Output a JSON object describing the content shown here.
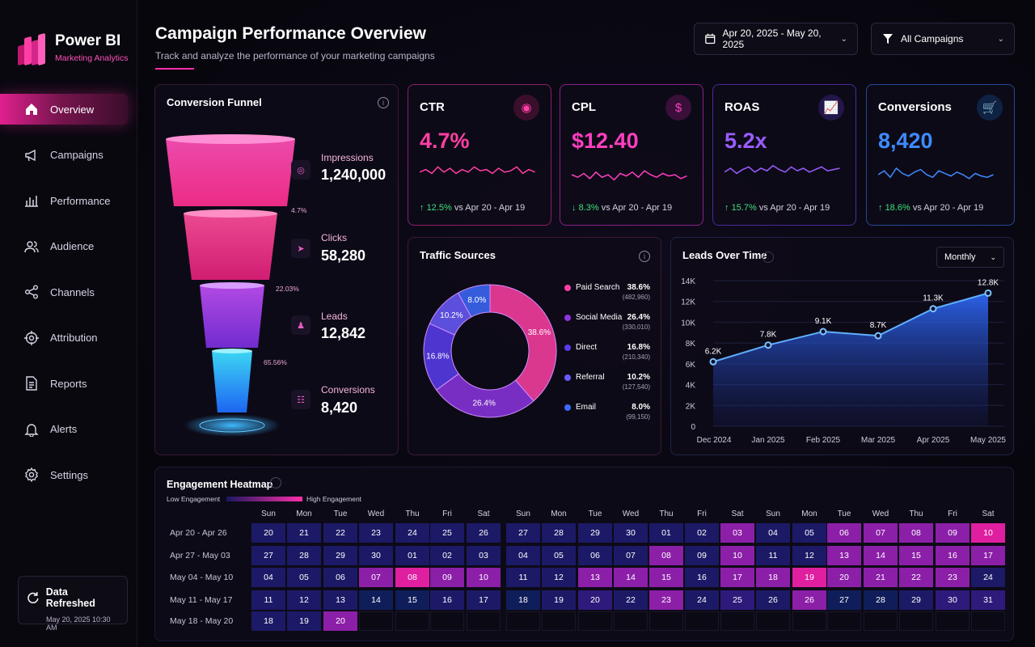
{
  "brand": {
    "title": "Power BI",
    "subtitle": "Marketing Analytics"
  },
  "nav": [
    {
      "label": "Overview",
      "icon": "home-icon",
      "active": true
    },
    {
      "label": "Campaigns",
      "icon": "megaphone-icon"
    },
    {
      "label": "Performance",
      "icon": "bar-chart-icon"
    },
    {
      "label": "Audience",
      "icon": "users-icon"
    },
    {
      "label": "Channels",
      "icon": "share-icon"
    },
    {
      "label": "Attribution",
      "icon": "target-icon"
    },
    {
      "label": "Reports",
      "icon": "document-icon"
    },
    {
      "label": "Alerts",
      "icon": "bell-icon"
    },
    {
      "label": "Settings",
      "icon": "gear-icon"
    }
  ],
  "refresh": {
    "title": "Data Refreshed",
    "time": "May 20, 2025 10:30 AM"
  },
  "header": {
    "title": "Campaign Performance Overview",
    "subtitle": "Track and analyze the performance of your marketing campaigns",
    "date_range": "Apr 20, 2025 - May 20, 2025",
    "campaign_filter": "All Campaigns"
  },
  "funnel": {
    "title": "Conversion Funnel",
    "stages": [
      {
        "label": "Impressions",
        "value": "1,240,000"
      },
      {
        "label": "Clicks",
        "value": "58,280"
      },
      {
        "label": "Leads",
        "value": "12,842"
      },
      {
        "label": "Conversions",
        "value": "8,420"
      }
    ],
    "rates": [
      "4.7%",
      "22.03%",
      "65.56%"
    ]
  },
  "kpis": [
    {
      "label": "CTR",
      "value": "4.7%",
      "change": "12.5%",
      "period": "vs Apr 20 - Apr 19",
      "direction": "up",
      "color": "#ff3fa4",
      "icon": "cursor-click-icon"
    },
    {
      "label": "CPL",
      "value": "$12.40",
      "change": "8.3%",
      "period": "vs Apr 20 - Apr 19",
      "direction": "down",
      "color": "#ff3fc0",
      "icon": "dollar-icon"
    },
    {
      "label": "ROAS",
      "value": "5.2x",
      "change": "15.7%",
      "period": "vs Apr 20 - Apr 19",
      "direction": "up",
      "color": "#9a5cff",
      "icon": "chart-up-icon"
    },
    {
      "label": "Conversions",
      "value": "8,420",
      "change": "18.6%",
      "period": "vs Apr 20 - Apr 19",
      "direction": "up",
      "color": "#3d8bff",
      "icon": "cart-icon"
    }
  ],
  "traffic": {
    "title": "Traffic Sources"
  },
  "leads": {
    "title": "Leads Over Time",
    "granularity": "Monthly"
  },
  "heatmap": {
    "title": "Engagement Heatmap",
    "low_label": "Low Engagement",
    "high_label": "High Engagement",
    "days": [
      "Sun",
      "Mon",
      "Tue",
      "Wed",
      "Thu",
      "Fri",
      "Sat",
      "Sun",
      "Mon",
      "Tue",
      "Wed",
      "Thu",
      "Fri",
      "Sat",
      "Sun",
      "Mon",
      "Tue",
      "Wed",
      "Thu",
      "Fri",
      "Sat"
    ],
    "weeks": [
      "Apr 20 - Apr 26",
      "Apr 27 - May 03",
      "May 04 - May 10",
      "May 11 - May 17",
      "May 18 - May 20"
    ],
    "rows": [
      [
        [
          "20",
          1
        ],
        [
          "21",
          1
        ],
        [
          "22",
          1
        ],
        [
          "23",
          1
        ],
        [
          "24",
          1
        ],
        [
          "25",
          1
        ],
        [
          "26",
          1
        ],
        [
          "27",
          1
        ],
        [
          "28",
          1
        ],
        [
          "29",
          1
        ],
        [
          "30",
          1
        ],
        [
          "01",
          1
        ],
        [
          "02",
          1
        ],
        [
          "03",
          3
        ],
        [
          "04",
          1
        ],
        [
          "05",
          1
        ],
        [
          "06",
          3
        ],
        [
          "07",
          3
        ],
        [
          "08",
          3
        ],
        [
          "09",
          3
        ],
        [
          "10",
          4
        ]
      ],
      [
        [
          "27",
          1
        ],
        [
          "28",
          1
        ],
        [
          "29",
          1
        ],
        [
          "30",
          1
        ],
        [
          "01",
          1
        ],
        [
          "02",
          1
        ],
        [
          "03",
          1
        ],
        [
          "04",
          1
        ],
        [
          "05",
          1
        ],
        [
          "06",
          1
        ],
        [
          "07",
          1
        ],
        [
          "08",
          3
        ],
        [
          "09",
          1
        ],
        [
          "10",
          3
        ],
        [
          "11",
          1
        ],
        [
          "12",
          1
        ],
        [
          "13",
          3
        ],
        [
          "14",
          3
        ],
        [
          "15",
          3
        ],
        [
          "16",
          3
        ],
        [
          "17",
          3
        ]
      ],
      [
        [
          "04",
          1
        ],
        [
          "05",
          1
        ],
        [
          "06",
          1
        ],
        [
          "07",
          3
        ],
        [
          "08",
          4
        ],
        [
          "09",
          3
        ],
        [
          "10",
          3
        ],
        [
          "11",
          1
        ],
        [
          "12",
          1
        ],
        [
          "13",
          3
        ],
        [
          "14",
          3
        ],
        [
          "15",
          3
        ],
        [
          "16",
          1
        ],
        [
          "17",
          3
        ],
        [
          "18",
          3
        ],
        [
          "19",
          4
        ],
        [
          "20",
          3
        ],
        [
          "21",
          3
        ],
        [
          "22",
          3
        ],
        [
          "23",
          3
        ],
        [
          "24",
          1
        ]
      ],
      [
        [
          "11",
          1
        ],
        [
          "12",
          1
        ],
        [
          "13",
          1
        ],
        [
          "14",
          0
        ],
        [
          "15",
          0
        ],
        [
          "16",
          1
        ],
        [
          "17",
          1
        ],
        [
          "18",
          0
        ],
        [
          "19",
          1
        ],
        [
          "20",
          2
        ],
        [
          "22",
          1
        ],
        [
          "23",
          3
        ],
        [
          "24",
          1
        ],
        [
          "25",
          2
        ],
        [
          "26",
          1
        ],
        [
          "26",
          3
        ],
        [
          "27",
          0
        ],
        [
          "28",
          0
        ],
        [
          "29",
          1
        ],
        [
          "30",
          2
        ],
        [
          "31",
          2
        ]
      ],
      [
        [
          "18",
          1
        ],
        [
          "19",
          1
        ],
        [
          "20",
          3
        ]
      ]
    ]
  },
  "chart_data": [
    {
      "type": "pie",
      "title": "Traffic Sources",
      "categories": [
        "Paid Search",
        "Social Media",
        "Direct",
        "Referral",
        "Email"
      ],
      "values": [
        38.6,
        26.4,
        16.8,
        10.2,
        8.0
      ],
      "absolute": [
        "(482,960)",
        "(330,010)",
        "(210,340)",
        "(127,540)",
        "(99,150)"
      ],
      "labels": [
        "38.6%",
        "26.4%",
        "16.8%",
        "10.2%",
        "8.0%"
      ],
      "colors": [
        "#ff3fa4",
        "#8c35e0",
        "#5a3df0",
        "#6a5cff",
        "#3d6bff"
      ],
      "legend": "right"
    },
    {
      "type": "area",
      "title": "Leads Over Time",
      "categories": [
        "Dec 2024",
        "Jan 2025",
        "Feb 2025",
        "Mar 2025",
        "Apr 2025",
        "May 2025"
      ],
      "values": [
        6.2,
        7.8,
        9.1,
        8.7,
        11.3,
        12.8
      ],
      "value_labels": [
        "6.2K",
        "7.8K",
        "9.1K",
        "8.7K",
        "11.3K",
        "12.8K"
      ],
      "y_ticks": [
        "0",
        "2K",
        "4K",
        "6K",
        "8K",
        "10K",
        "12K",
        "14K"
      ],
      "ylim": [
        0,
        14
      ],
      "grid": true,
      "color": "#3d8bff"
    }
  ]
}
